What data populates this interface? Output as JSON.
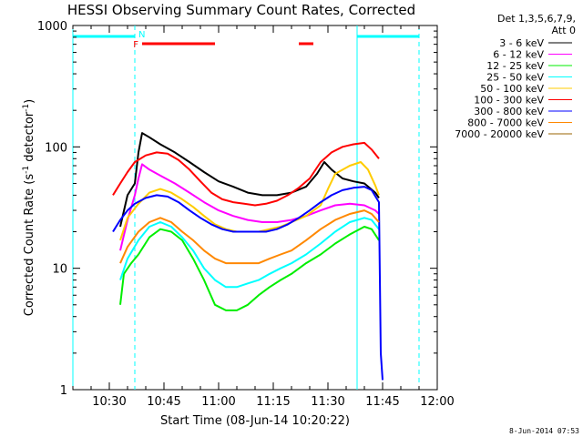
{
  "chart_data": {
    "type": "line",
    "title": "HESSI Observing Summary Count Rates, Corrected",
    "xlabel": "Start Time (08-Jun-14 10:20:22)",
    "ylabel": "Corrected Count Rate (s^-1 detector^-1)",
    "ylabel_parts": {
      "a": "Corrected Count Rate (s",
      "b": "-1",
      "c": " detector",
      "d": "-1",
      "e": ")"
    },
    "yscale": "log",
    "xlim": [
      "10:20",
      "12:00"
    ],
    "ylim": [
      1,
      1000
    ],
    "xticks": [
      "10:30",
      "10:45",
      "11:00",
      "11:15",
      "11:30",
      "11:45",
      "12:00"
    ],
    "yticks": [
      "1",
      "10",
      "100",
      "1000"
    ],
    "legend_title": "Det 1,3,5,6,7,9,",
    "legend_subtitle": "Att 0",
    "legend_position": "right",
    "timestamp": "8-Jun-2014 07:53",
    "series": [
      {
        "name": "3 - 6 keV",
        "color": "#000000",
        "points": [
          [
            "10:33",
            22
          ],
          [
            "10:35",
            40
          ],
          [
            "10:37",
            50
          ],
          [
            "10:38",
            90
          ],
          [
            "10:39",
            130
          ],
          [
            "10:41",
            120
          ],
          [
            "10:44",
            105
          ],
          [
            "10:48",
            90
          ],
          [
            "10:52",
            75
          ],
          [
            "10:56",
            62
          ],
          [
            "11:00",
            52
          ],
          [
            "11:04",
            47
          ],
          [
            "11:08",
            42
          ],
          [
            "11:12",
            40
          ],
          [
            "11:16",
            40
          ],
          [
            "11:20",
            42
          ],
          [
            "11:24",
            47
          ],
          [
            "11:27",
            60
          ],
          [
            "11:29",
            75
          ],
          [
            "11:31",
            65
          ],
          [
            "11:34",
            55
          ],
          [
            "11:37",
            52
          ],
          [
            "11:40",
            50
          ],
          [
            "11:43",
            42
          ],
          [
            "11:44",
            38
          ]
        ]
      },
      {
        "name": "6 - 12 keV",
        "color": "#ff00ff",
        "points": [
          [
            "10:33",
            14
          ],
          [
            "10:35",
            25
          ],
          [
            "10:37",
            40
          ],
          [
            "10:38",
            55
          ],
          [
            "10:39",
            72
          ],
          [
            "10:41",
            65
          ],
          [
            "10:44",
            58
          ],
          [
            "10:48",
            50
          ],
          [
            "10:52",
            42
          ],
          [
            "10:56",
            35
          ],
          [
            "11:00",
            30
          ],
          [
            "11:04",
            27
          ],
          [
            "11:08",
            25
          ],
          [
            "11:12",
            24
          ],
          [
            "11:16",
            24
          ],
          [
            "11:20",
            25
          ],
          [
            "11:24",
            27
          ],
          [
            "11:28",
            30
          ],
          [
            "11:32",
            33
          ],
          [
            "11:36",
            34
          ],
          [
            "11:40",
            33
          ],
          [
            "11:43",
            30
          ],
          [
            "11:44",
            28
          ]
        ]
      },
      {
        "name": "12 - 25 keV",
        "color": "#00ee00",
        "points": [
          [
            "10:33",
            5
          ],
          [
            "10:34",
            9
          ],
          [
            "10:36",
            11
          ],
          [
            "10:38",
            13
          ],
          [
            "10:41",
            18
          ],
          [
            "10:44",
            21
          ],
          [
            "10:47",
            20
          ],
          [
            "10:50",
            17
          ],
          [
            "10:53",
            12
          ],
          [
            "10:56",
            8
          ],
          [
            "10:59",
            5
          ],
          [
            "11:02",
            4.5
          ],
          [
            "11:05",
            4.5
          ],
          [
            "11:08",
            5
          ],
          [
            "11:11",
            6
          ],
          [
            "11:14",
            7
          ],
          [
            "11:17",
            8
          ],
          [
            "11:20",
            9
          ],
          [
            "11:24",
            11
          ],
          [
            "11:28",
            13
          ],
          [
            "11:32",
            16
          ],
          [
            "11:36",
            19
          ],
          [
            "11:40",
            22
          ],
          [
            "11:42",
            21
          ],
          [
            "11:44",
            17
          ]
        ]
      },
      {
        "name": "25 - 50 keV",
        "color": "#00ffff",
        "points": [
          [
            "10:33",
            8
          ],
          [
            "10:35",
            12
          ],
          [
            "10:38",
            17
          ],
          [
            "10:41",
            22
          ],
          [
            "10:44",
            24
          ],
          [
            "10:47",
            22
          ],
          [
            "10:50",
            18
          ],
          [
            "10:53",
            14
          ],
          [
            "10:56",
            10
          ],
          [
            "10:59",
            8
          ],
          [
            "11:02",
            7
          ],
          [
            "11:05",
            7
          ],
          [
            "11:08",
            7.5
          ],
          [
            "11:11",
            8
          ],
          [
            "11:14",
            9
          ],
          [
            "11:17",
            10
          ],
          [
            "11:20",
            11
          ],
          [
            "11:24",
            13
          ],
          [
            "11:28",
            16
          ],
          [
            "11:32",
            20
          ],
          [
            "11:36",
            24
          ],
          [
            "11:40",
            26
          ],
          [
            "11:42",
            25
          ],
          [
            "11:44",
            21
          ]
        ]
      },
      {
        "name": "50 - 100 keV",
        "color": "#ffcc00",
        "points": [
          [
            "10:33",
            17
          ],
          [
            "10:35",
            26
          ],
          [
            "10:38",
            34
          ],
          [
            "10:41",
            42
          ],
          [
            "10:44",
            45
          ],
          [
            "10:47",
            42
          ],
          [
            "10:50",
            37
          ],
          [
            "10:53",
            32
          ],
          [
            "10:56",
            27
          ],
          [
            "10:59",
            23
          ],
          [
            "11:02",
            21
          ],
          [
            "11:05",
            20
          ],
          [
            "11:08",
            20
          ],
          [
            "11:11",
            20
          ],
          [
            "11:14",
            21
          ],
          [
            "11:17",
            22
          ],
          [
            "11:20",
            24
          ],
          [
            "11:24",
            27
          ],
          [
            "11:28",
            33
          ],
          [
            "11:30",
            45
          ],
          [
            "11:32",
            60
          ],
          [
            "11:36",
            70
          ],
          [
            "11:39",
            75
          ],
          [
            "11:41",
            65
          ],
          [
            "11:43",
            48
          ],
          [
            "11:44",
            40
          ]
        ]
      },
      {
        "name": "100 - 300 keV",
        "color": "#ff0000",
        "points": [
          [
            "10:31",
            40
          ],
          [
            "10:33",
            50
          ],
          [
            "10:35",
            62
          ],
          [
            "10:37",
            75
          ],
          [
            "10:40",
            85
          ],
          [
            "10:43",
            90
          ],
          [
            "10:46",
            88
          ],
          [
            "10:49",
            78
          ],
          [
            "10:52",
            65
          ],
          [
            "10:55",
            52
          ],
          [
            "10:58",
            42
          ],
          [
            "11:01",
            37
          ],
          [
            "11:04",
            35
          ],
          [
            "11:07",
            34
          ],
          [
            "11:10",
            33
          ],
          [
            "11:13",
            34
          ],
          [
            "11:16",
            36
          ],
          [
            "11:19",
            40
          ],
          [
            "11:22",
            46
          ],
          [
            "11:25",
            55
          ],
          [
            "11:28",
            75
          ],
          [
            "11:31",
            90
          ],
          [
            "11:34",
            100
          ],
          [
            "11:37",
            105
          ],
          [
            "11:40",
            108
          ],
          [
            "11:42",
            95
          ],
          [
            "11:44",
            80
          ]
        ]
      },
      {
        "name": "300 - 800 keV",
        "color": "#0000ff",
        "points": [
          [
            "10:31",
            20
          ],
          [
            "10:33",
            25
          ],
          [
            "10:35",
            30
          ],
          [
            "10:37",
            34
          ],
          [
            "10:40",
            38
          ],
          [
            "10:43",
            40
          ],
          [
            "10:46",
            39
          ],
          [
            "10:49",
            35
          ],
          [
            "10:52",
            30
          ],
          [
            "10:55",
            26
          ],
          [
            "10:58",
            23
          ],
          [
            "11:01",
            21
          ],
          [
            "11:04",
            20
          ],
          [
            "11:07",
            20
          ],
          [
            "11:10",
            20
          ],
          [
            "11:13",
            20
          ],
          [
            "11:16",
            21
          ],
          [
            "11:19",
            23
          ],
          [
            "11:22",
            26
          ],
          [
            "11:25",
            30
          ],
          [
            "11:28",
            35
          ],
          [
            "11:31",
            40
          ],
          [
            "11:34",
            44
          ],
          [
            "11:37",
            46
          ],
          [
            "11:40",
            47
          ],
          [
            "11:42",
            44
          ],
          [
            "11:44",
            35
          ],
          [
            "11:44.5",
            2
          ],
          [
            "11:45",
            1.2
          ]
        ]
      },
      {
        "name": "800 - 7000 keV",
        "color": "#ff8800",
        "points": [
          [
            "10:33",
            11
          ],
          [
            "10:35",
            15
          ],
          [
            "10:38",
            20
          ],
          [
            "10:41",
            24
          ],
          [
            "10:44",
            26
          ],
          [
            "10:47",
            24
          ],
          [
            "10:50",
            20
          ],
          [
            "10:53",
            17
          ],
          [
            "10:56",
            14
          ],
          [
            "10:59",
            12
          ],
          [
            "11:02",
            11
          ],
          [
            "11:05",
            11
          ],
          [
            "11:08",
            11
          ],
          [
            "11:11",
            11
          ],
          [
            "11:14",
            12
          ],
          [
            "11:17",
            13
          ],
          [
            "11:20",
            14
          ],
          [
            "11:24",
            17
          ],
          [
            "11:28",
            21
          ],
          [
            "11:32",
            25
          ],
          [
            "11:36",
            28
          ],
          [
            "11:40",
            30
          ],
          [
            "11:42",
            28
          ],
          [
            "11:44",
            24
          ]
        ]
      },
      {
        "name": "7000 - 20000 keV",
        "color": "#996600",
        "points": []
      }
    ],
    "markers": {
      "flare_label": "F",
      "night_label": "N",
      "flare_color": "#ff0000",
      "night_color": "#00ffff",
      "flare_intervals": [
        [
          "10:39",
          "10:59"
        ],
        [
          "11:22",
          "11:26"
        ]
      ],
      "night_intervals": [
        [
          "10:20",
          "10:37"
        ],
        [
          "11:38",
          "11:55"
        ]
      ],
      "vlines_solid": [
        "10:20",
        "11:38"
      ],
      "vlines_dashed": [
        "10:37",
        "11:55"
      ]
    }
  }
}
